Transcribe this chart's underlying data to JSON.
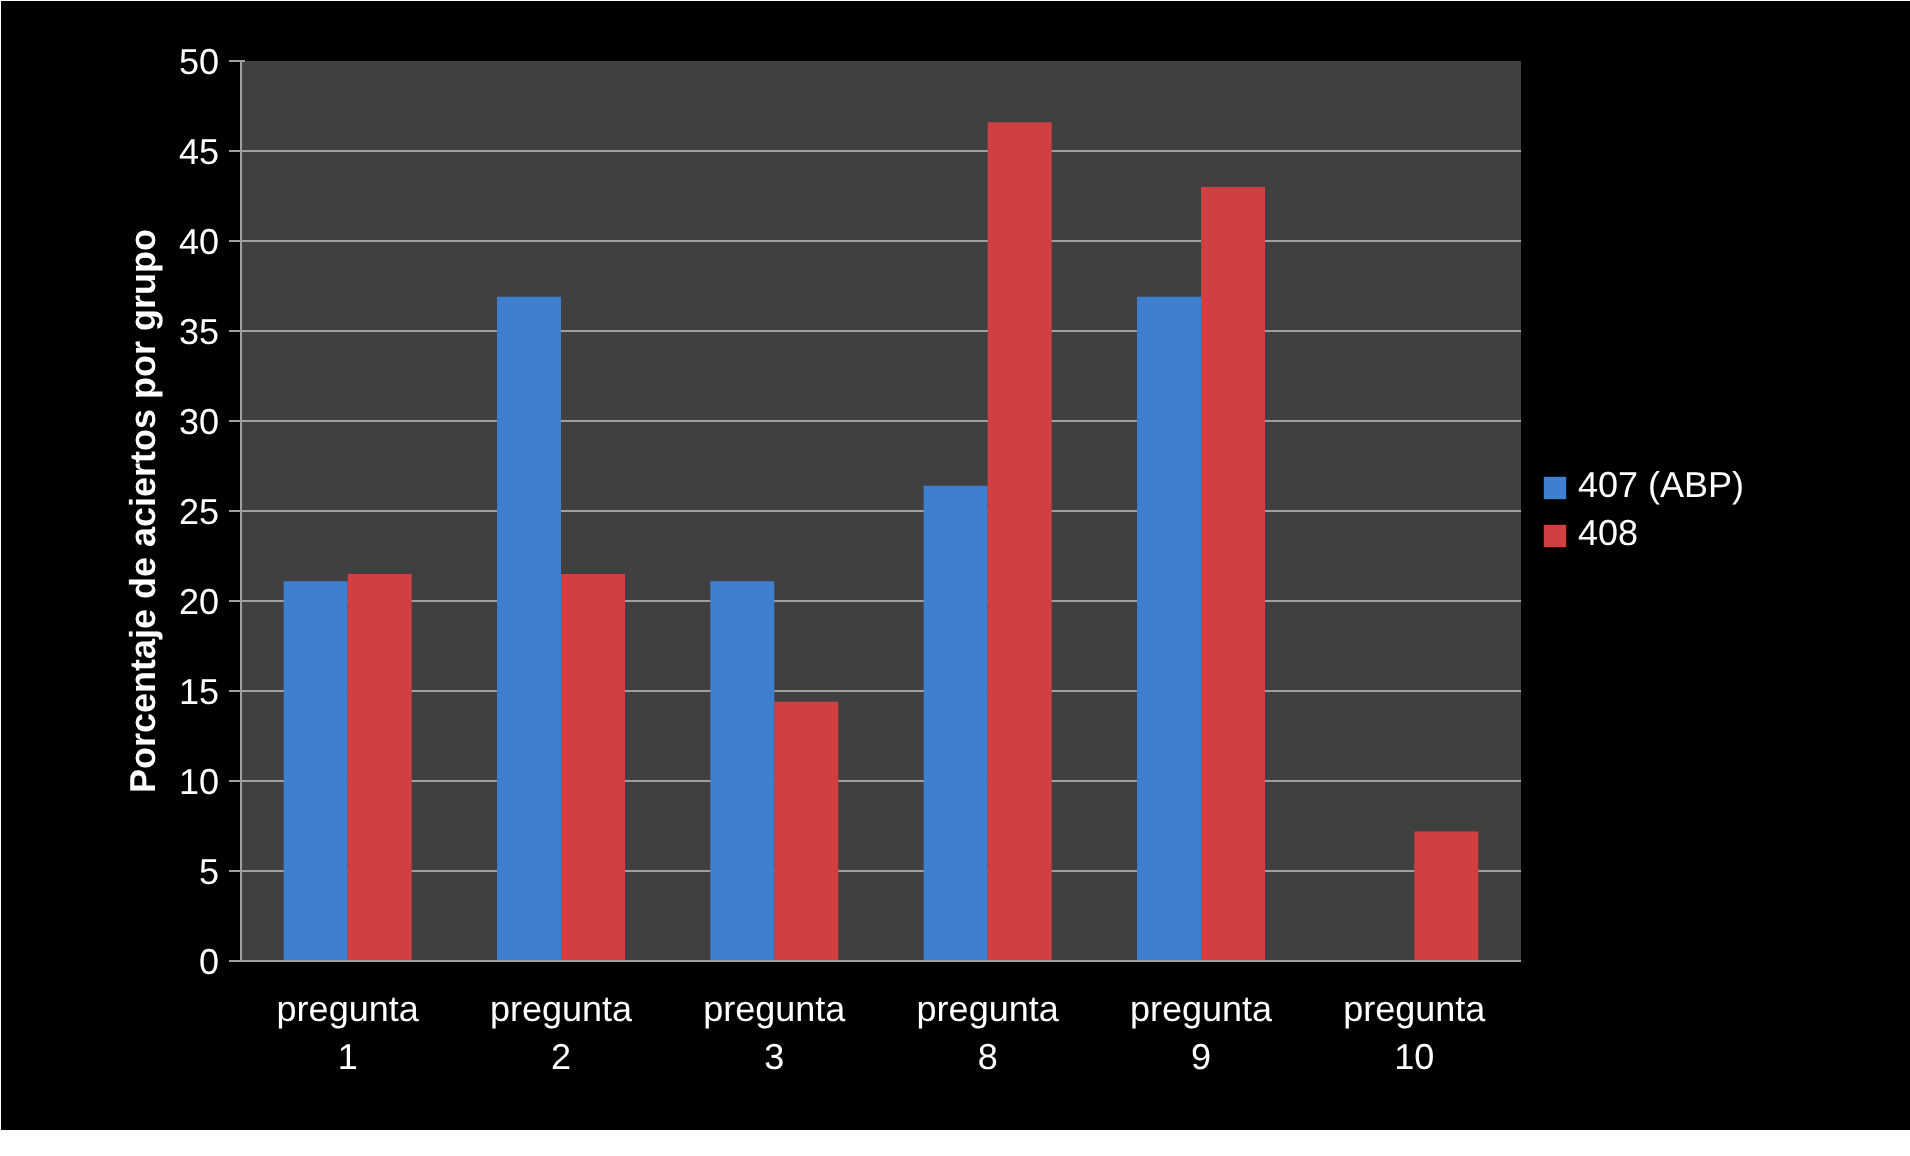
{
  "chart_data": {
    "type": "bar",
    "ylabel": "Porcentaje de aciertos por grupo",
    "categories": [
      "pregunta 1",
      "pregunta 2",
      "pregunta 3",
      "pregunta 8",
      "pregunta 9",
      "pregunta 10"
    ],
    "series": [
      {
        "name": "407 (ABP)",
        "color": "#3f7fd0",
        "values": [
          21.1,
          36.9,
          21.1,
          26.4,
          36.9,
          0
        ]
      },
      {
        "name": "408",
        "color": "#d04040",
        "values": [
          21.5,
          21.5,
          14.4,
          46.6,
          43.0,
          7.2
        ]
      }
    ],
    "ylim": [
      0,
      50
    ],
    "yticks": [
      0,
      5,
      10,
      15,
      20,
      25,
      30,
      35,
      40,
      45,
      50
    ],
    "grid": "y",
    "legend": "right"
  }
}
